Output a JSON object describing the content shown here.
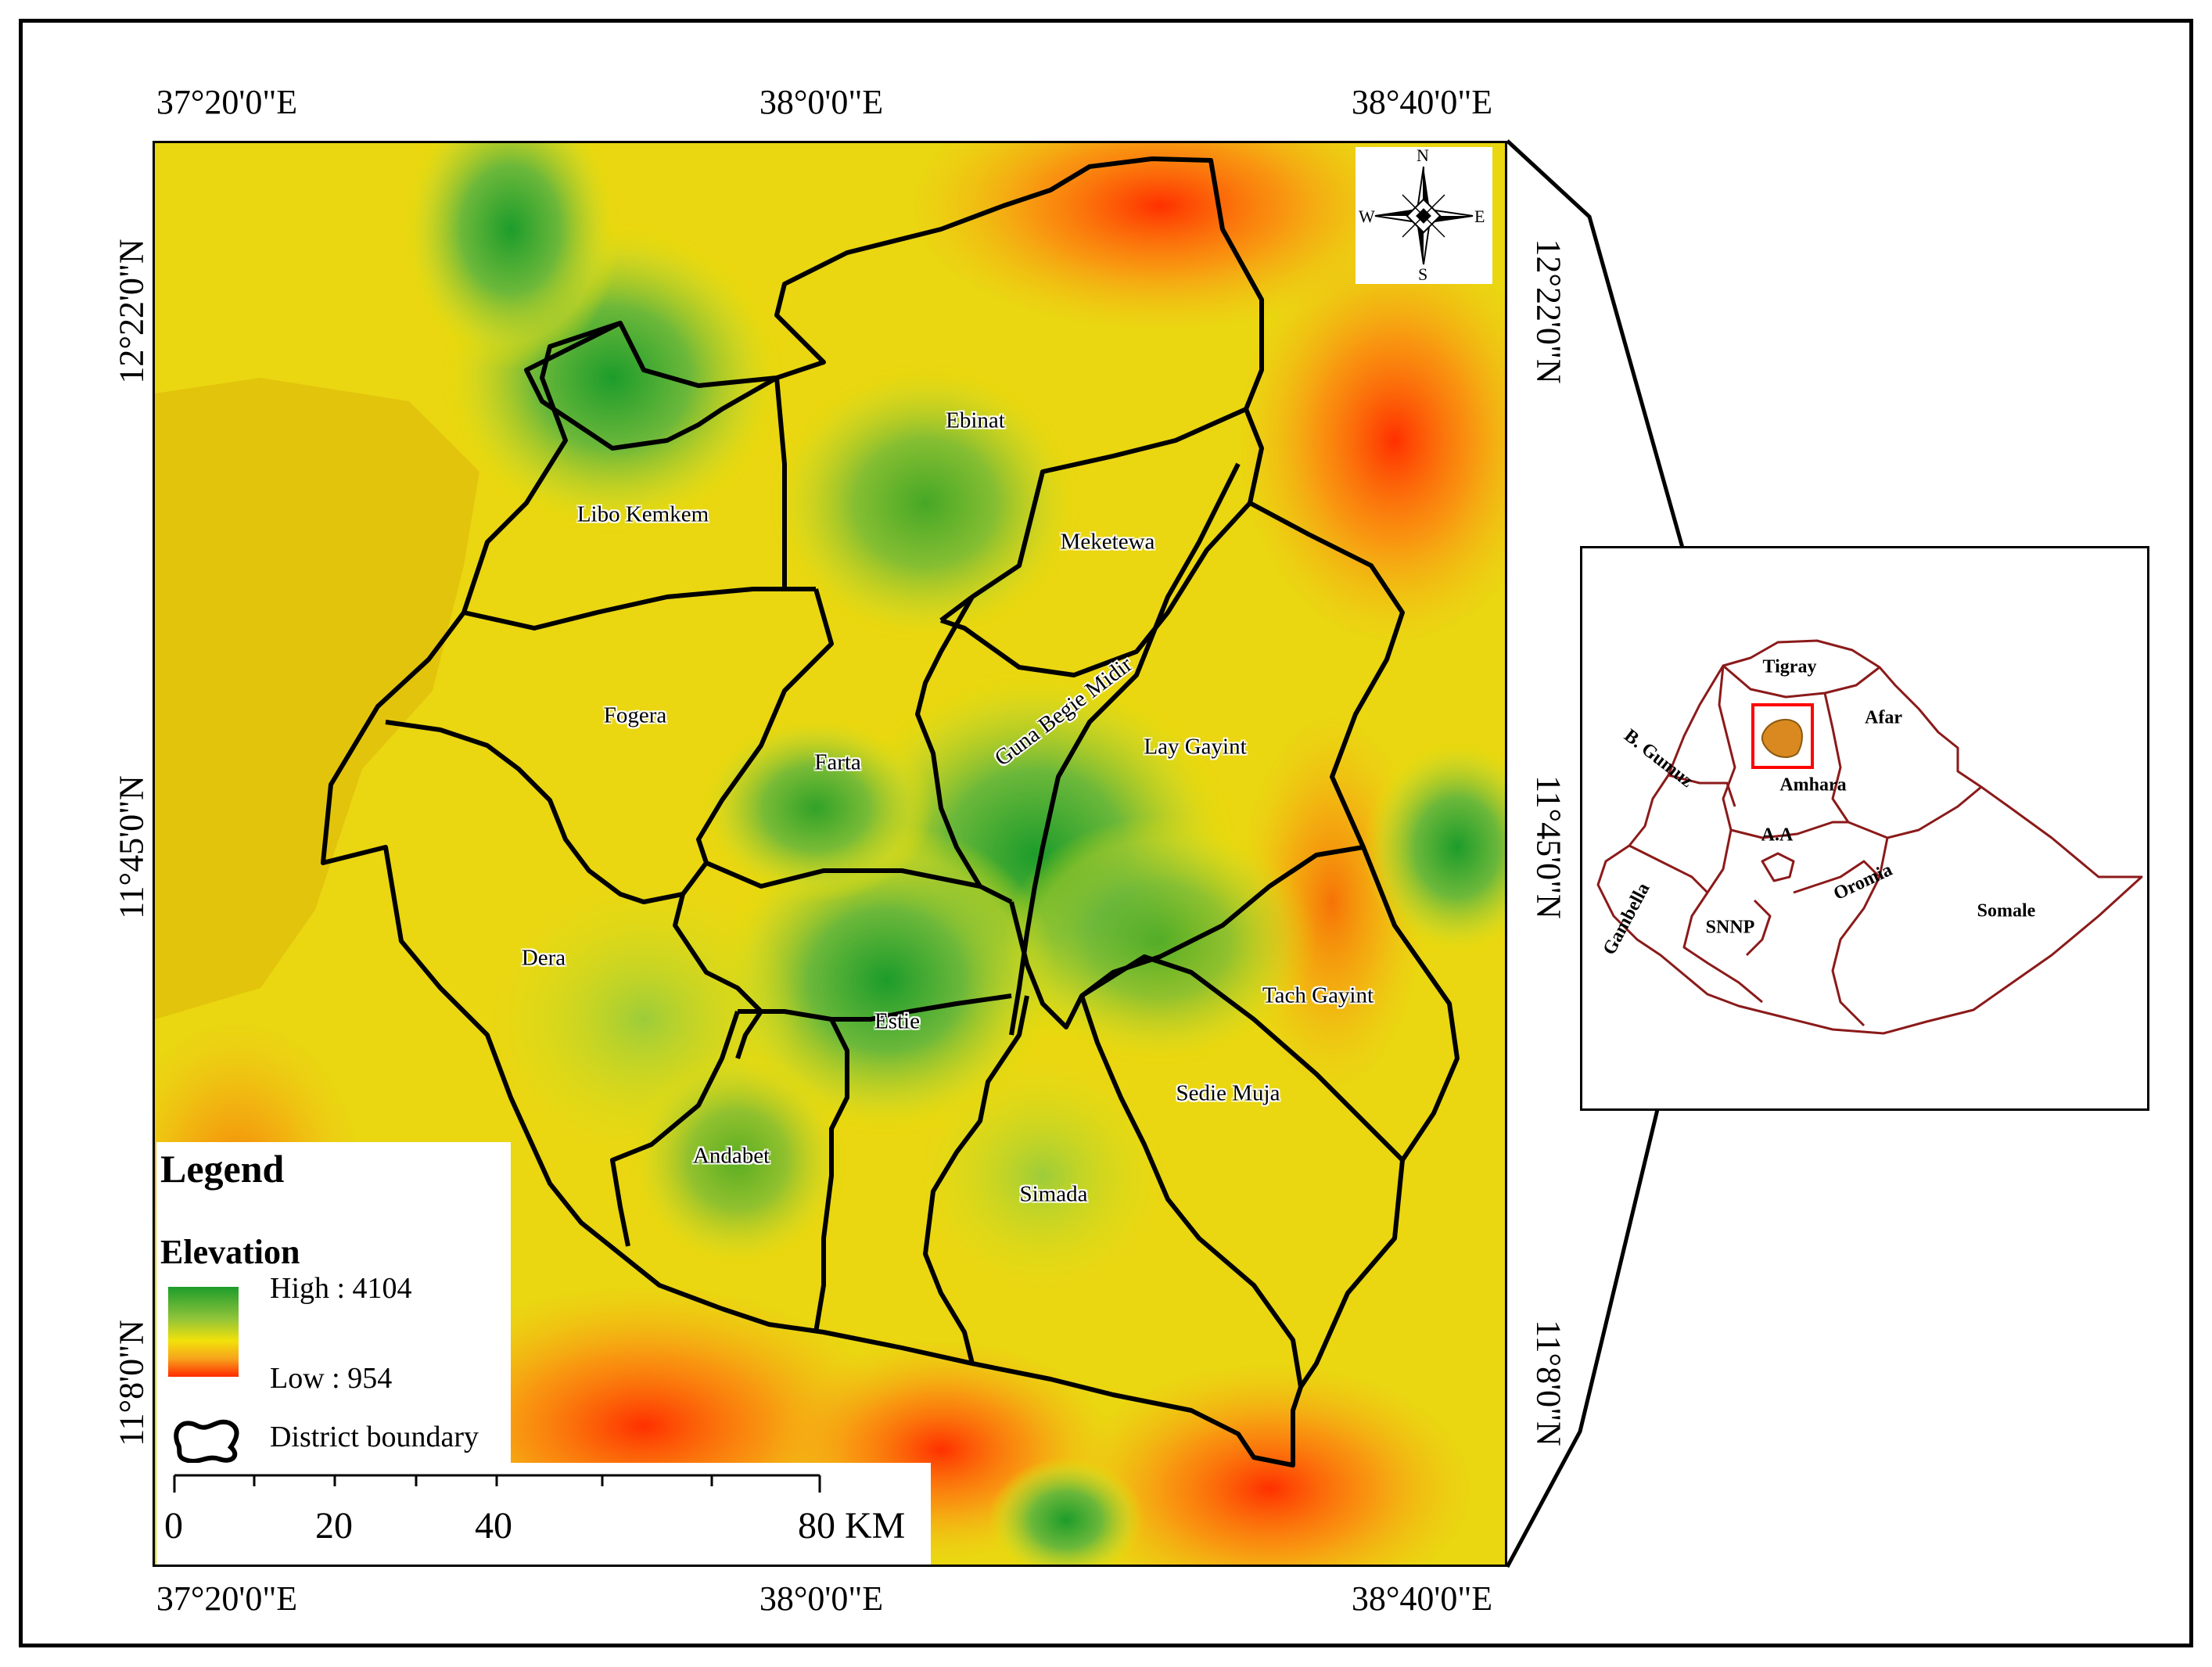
{
  "coordinates": {
    "top": [
      "37°20'0\"E",
      "38°0'0\"E",
      "38°40'0\"E"
    ],
    "bottom": [
      "37°20'0\"E",
      "38°0'0\"E",
      "38°40'0\"E"
    ],
    "left": [
      "12°22'0\"N",
      "11°45'0\"N",
      "11°8'0\"N"
    ],
    "right": [
      "12°22'0\"N",
      "11°45'0\"N",
      "11°8'0\"N"
    ]
  },
  "districts": [
    "Ebinat",
    "Libo Kemkem",
    "Meketewa",
    "Fogera",
    "Farta",
    "Guna Begie Midir",
    "Lay Gayint",
    "Dera",
    "Estie",
    "Tach Gayint",
    "Sedie Muja",
    "Andabet",
    "Simada"
  ],
  "legend": {
    "title": "Legend",
    "elevation_title": "Elevation",
    "high": "High : 4104",
    "low": "Low : 954",
    "boundary": "District boundary"
  },
  "scale": {
    "labels": [
      "0",
      "20",
      "40",
      "80 KM"
    ]
  },
  "compass": {
    "n": "N",
    "s": "S",
    "e": "E",
    "w": "W"
  },
  "inset": {
    "regions": [
      "Tigray",
      "Afar",
      "B. Gumuz",
      "Amhara",
      "A.A",
      "Oromia",
      "Gambella",
      "SNNP",
      "Somale"
    ]
  },
  "colors": {
    "elevation_high": "#1d9c2b",
    "elevation_mid": "#f2e10a",
    "elevation_low": "#ff2a00",
    "inset_boundary": "#8b1a1a",
    "study_area_fill": "#d9891f",
    "study_area_box": "#ff0000"
  }
}
